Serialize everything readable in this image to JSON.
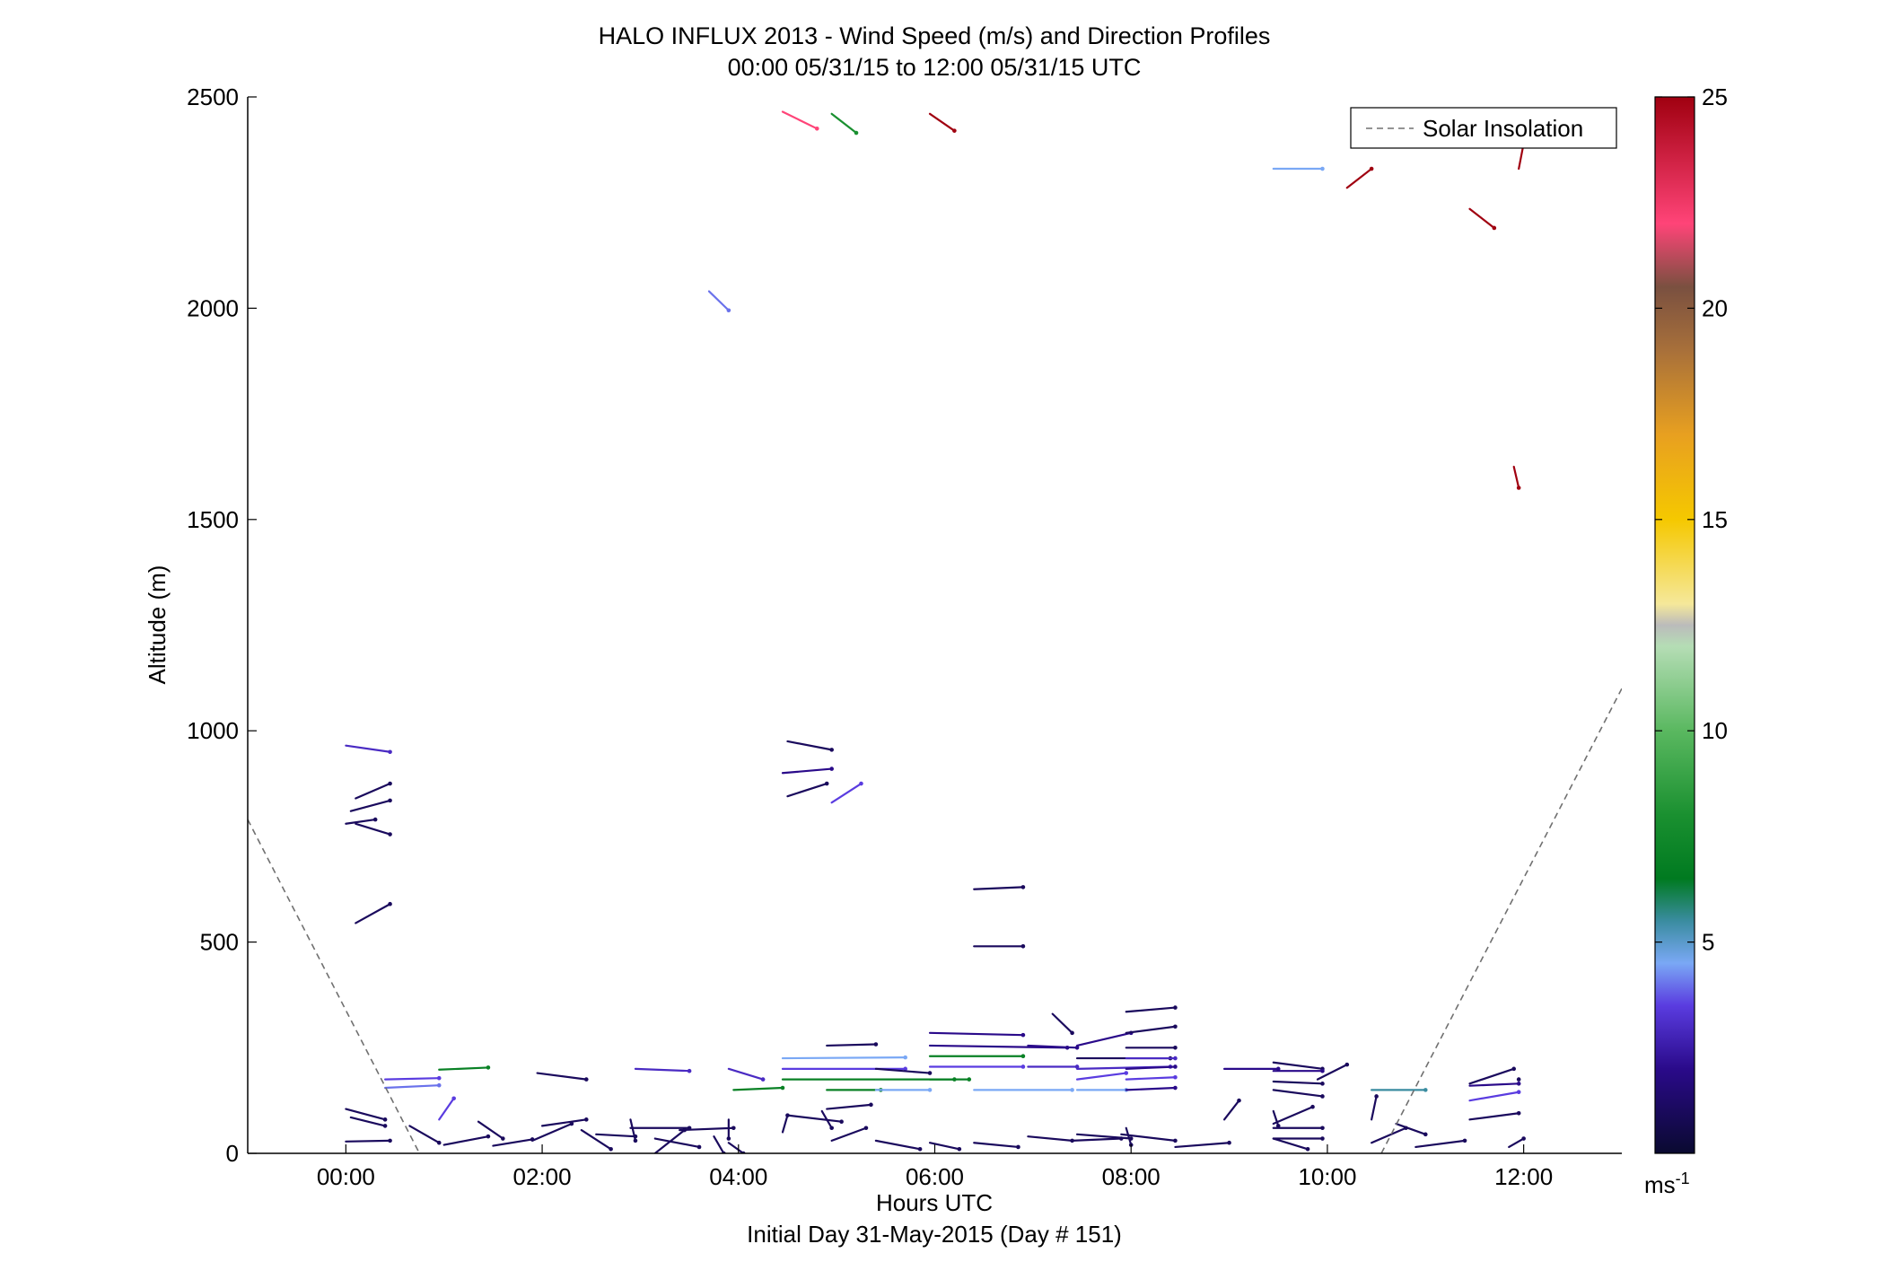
{
  "chart_data": {
    "type": "scatter",
    "title": "HALO INFLUX 2013 - Wind Speed (m/s) and Direction Profiles",
    "subtitle": "00:00 05/31/15 to 12:00 05/31/15  UTC",
    "xlabel": "Hours UTC",
    "xlabel2": "Initial Day 31-May-2015 (Day # 151)",
    "ylabel": "Altitude (m)",
    "xlim": [
      -1,
      13
    ],
    "ylim": [
      0,
      2500
    ],
    "x_ticks": [
      0,
      2,
      4,
      6,
      8,
      10,
      12
    ],
    "x_tick_labels": [
      "00:00",
      "02:00",
      "04:00",
      "06:00",
      "08:00",
      "10:00",
      "12:00"
    ],
    "y_ticks": [
      0,
      500,
      1000,
      1500,
      2000,
      2500
    ],
    "y_tick_labels": [
      "0",
      "500",
      "1000",
      "1500",
      "2000",
      "2500"
    ],
    "legend": {
      "entries": [
        "Solar Insolation"
      ],
      "position": "top-right"
    },
    "colorbar": {
      "min": 0,
      "max": 25,
      "ticks": [
        5,
        10,
        15,
        20,
        25
      ],
      "tick_labels": [
        "5",
        "10",
        "15",
        "20",
        "25"
      ],
      "unit_label": "ms",
      "unit_exponent": "-1",
      "stops": [
        {
          "v": 0,
          "c": "#0a0a30"
        },
        {
          "v": 2,
          "c": "#2a0a8a"
        },
        {
          "v": 3.5,
          "c": "#5a3ce0"
        },
        {
          "v": 4.5,
          "c": "#7aa8f5"
        },
        {
          "v": 5.5,
          "c": "#3a8ca0"
        },
        {
          "v": 6.5,
          "c": "#007a20"
        },
        {
          "v": 8,
          "c": "#1a9030"
        },
        {
          "v": 10,
          "c": "#5ab860"
        },
        {
          "v": 12,
          "c": "#b5ddb5"
        },
        {
          "v": 12.5,
          "c": "#bbbbbb"
        },
        {
          "v": 13,
          "c": "#f5e89a"
        },
        {
          "v": 15,
          "c": "#f5c800"
        },
        {
          "v": 17,
          "c": "#e8a020"
        },
        {
          "v": 19,
          "c": "#a8703a"
        },
        {
          "v": 20.5,
          "c": "#7a5040"
        },
        {
          "v": 22,
          "c": "#ff4478"
        },
        {
          "v": 25,
          "c": "#a00010"
        }
      ]
    },
    "solar_insolation": {
      "color": "#707070",
      "segments": [
        [
          [
            -1,
            790
          ],
          [
            0.75,
            0
          ]
        ],
        [
          [
            10.55,
            0
          ],
          [
            13,
            1100
          ]
        ]
      ]
    },
    "wind_barbs": [
      {
        "x": 0,
        "y": 965,
        "dx": 0.45,
        "dy": -15,
        "speed": 3
      },
      {
        "x": 0.1,
        "y": 840,
        "dx": 0.35,
        "dy": 35,
        "speed": 1
      },
      {
        "x": 0.05,
        "y": 810,
        "dx": 0.4,
        "dy": 25,
        "speed": 1
      },
      {
        "x": 0.1,
        "y": 780,
        "dx": 0.35,
        "dy": -25,
        "speed": 1
      },
      {
        "x": 0,
        "y": 780,
        "dx": 0.3,
        "dy": 10,
        "speed": 1
      },
      {
        "x": 0.1,
        "y": 545,
        "dx": 0.35,
        "dy": 45,
        "speed": 1
      },
      {
        "x": 0.4,
        "y": 175,
        "dx": 0.55,
        "dy": 3,
        "speed": 3.5
      },
      {
        "x": 0.4,
        "y": 155,
        "dx": 0.55,
        "dy": 6,
        "speed": 4
      },
      {
        "x": 0.95,
        "y": 198,
        "dx": 0.5,
        "dy": 5,
        "speed": 7
      },
      {
        "x": 0,
        "y": 105,
        "dx": 0.4,
        "dy": -25,
        "speed": 1
      },
      {
        "x": 0.05,
        "y": 85,
        "dx": 0.35,
        "dy": -20,
        "speed": 1
      },
      {
        "x": 0,
        "y": 28,
        "dx": 0.45,
        "dy": 2,
        "speed": 1
      },
      {
        "x": 0.65,
        "y": 65,
        "dx": 0.3,
        "dy": -40,
        "speed": 1
      },
      {
        "x": 0.95,
        "y": 80,
        "dx": 0.15,
        "dy": 50,
        "speed": 3.5
      },
      {
        "x": 1,
        "y": 20,
        "dx": 0.45,
        "dy": 20,
        "speed": 1
      },
      {
        "x": 1.35,
        "y": 75,
        "dx": 0.25,
        "dy": -40,
        "speed": 1
      },
      {
        "x": 1.5,
        "y": 18,
        "dx": 0.4,
        "dy": 15,
        "speed": 1
      },
      {
        "x": 1.95,
        "y": 190,
        "dx": 0.5,
        "dy": -15,
        "speed": 1
      },
      {
        "x": 1.9,
        "y": 30,
        "dx": 0.4,
        "dy": 40,
        "speed": 1
      },
      {
        "x": 2,
        "y": 65,
        "dx": 0.45,
        "dy": 15,
        "speed": 1
      },
      {
        "x": 2.4,
        "y": 55,
        "dx": 0.3,
        "dy": -45,
        "speed": 1
      },
      {
        "x": 2.55,
        "y": 45,
        "dx": 0.4,
        "dy": -5,
        "speed": 1
      },
      {
        "x": 2.9,
        "y": 80,
        "dx": 0.05,
        "dy": -50,
        "speed": 1
      },
      {
        "x": 2.9,
        "y": 60,
        "dx": 0.6,
        "dy": 0,
        "speed": 1
      },
      {
        "x": 2.95,
        "y": 200,
        "dx": 0.55,
        "dy": -5,
        "speed": 3
      },
      {
        "x": 3.15,
        "y": 35,
        "dx": 0.45,
        "dy": -20,
        "speed": 1
      },
      {
        "x": 3.15,
        "y": 0,
        "dx": 0.3,
        "dy": 55,
        "speed": 1
      },
      {
        "x": 3.9,
        "y": 200,
        "dx": 0.35,
        "dy": -25,
        "speed": 3
      },
      {
        "x": 3.9,
        "y": 80,
        "dx": 0,
        "dy": -45,
        "speed": 1
      },
      {
        "x": 3.4,
        "y": 55,
        "dx": 0.55,
        "dy": 5,
        "speed": 1
      },
      {
        "x": 3.75,
        "y": 40,
        "dx": 0.1,
        "dy": -40,
        "speed": 1
      },
      {
        "x": 3.9,
        "y": 25,
        "dx": 0.15,
        "dy": -25,
        "speed": 1
      },
      {
        "x": 4.45,
        "y": 2465,
        "dx": 0.35,
        "dy": -40,
        "speed": 22
      },
      {
        "x": 4.95,
        "y": 2460,
        "dx": 0.25,
        "dy": -45,
        "speed": 8
      },
      {
        "x": 5.95,
        "y": 2460,
        "dx": 0.25,
        "dy": -40,
        "speed": 25
      },
      {
        "x": 3.7,
        "y": 2040,
        "dx": 0.2,
        "dy": -45,
        "speed": 4
      },
      {
        "x": 4.5,
        "y": 975,
        "dx": 0.45,
        "dy": -20,
        "speed": 1
      },
      {
        "x": 4.45,
        "y": 900,
        "dx": 0.5,
        "dy": 10,
        "speed": 2
      },
      {
        "x": 4.5,
        "y": 845,
        "dx": 0.4,
        "dy": 30,
        "speed": 1
      },
      {
        "x": 4.95,
        "y": 830,
        "dx": 0.3,
        "dy": 45,
        "speed": 3.5
      },
      {
        "x": 4.45,
        "y": 225,
        "dx": 1.25,
        "dy": 2,
        "speed": 4.5
      },
      {
        "x": 4.45,
        "y": 200,
        "dx": 1.25,
        "dy": 0,
        "speed": 3.5
      },
      {
        "x": 4.45,
        "y": 175,
        "dx": 1.75,
        "dy": 0,
        "speed": 7
      },
      {
        "x": 4.9,
        "y": 150,
        "dx": 0.55,
        "dy": 0,
        "speed": 7
      },
      {
        "x": 4.9,
        "y": 255,
        "dx": 0.5,
        "dy": 3,
        "speed": 1
      },
      {
        "x": 4.9,
        "y": 105,
        "dx": 0.45,
        "dy": 10,
        "speed": 1
      },
      {
        "x": 4.5,
        "y": 90,
        "dx": 0.55,
        "dy": -15,
        "speed": 1
      },
      {
        "x": 4.45,
        "y": 50,
        "dx": 0.05,
        "dy": 40,
        "speed": 1
      },
      {
        "x": 4.95,
        "y": 30,
        "dx": 0.35,
        "dy": 30,
        "speed": 1
      },
      {
        "x": 4.85,
        "y": 100,
        "dx": 0.1,
        "dy": -40,
        "speed": 1
      },
      {
        "x": 3.95,
        "y": 150,
        "dx": 0.5,
        "dy": 5,
        "speed": 7
      },
      {
        "x": 5.4,
        "y": 200,
        "dx": 0.55,
        "dy": -10,
        "speed": 1
      },
      {
        "x": 5.4,
        "y": 150,
        "dx": 0.55,
        "dy": 0,
        "speed": 4.5
      },
      {
        "x": 5.4,
        "y": 30,
        "dx": 0.45,
        "dy": -20,
        "speed": 1
      },
      {
        "x": 5.95,
        "y": 285,
        "dx": 0.95,
        "dy": -5,
        "speed": 2
      },
      {
        "x": 5.95,
        "y": 255,
        "dx": 1.4,
        "dy": -5,
        "speed": 2
      },
      {
        "x": 5.95,
        "y": 230,
        "dx": 0.95,
        "dy": 0,
        "speed": 7
      },
      {
        "x": 5.95,
        "y": 205,
        "dx": 0.95,
        "dy": 0,
        "speed": 3.5
      },
      {
        "x": 5.95,
        "y": 175,
        "dx": 0.4,
        "dy": 0,
        "speed": 7
      },
      {
        "x": 5.95,
        "y": 25,
        "dx": 0.3,
        "dy": -15,
        "speed": 1
      },
      {
        "x": 6.4,
        "y": 625,
        "dx": 0.5,
        "dy": 5,
        "speed": 1
      },
      {
        "x": 6.4,
        "y": 490,
        "dx": 0.5,
        "dy": 0,
        "speed": 1
      },
      {
        "x": 6.4,
        "y": 150,
        "dx": 1,
        "dy": 0,
        "speed": 4.5
      },
      {
        "x": 6.4,
        "y": 25,
        "dx": 0.45,
        "dy": -10,
        "speed": 1
      },
      {
        "x": 6.95,
        "y": 205,
        "dx": 0.5,
        "dy": 0,
        "speed": 3
      },
      {
        "x": 6.95,
        "y": 255,
        "dx": 0.5,
        "dy": -5,
        "speed": 2
      },
      {
        "x": 7.2,
        "y": 330,
        "dx": 0.2,
        "dy": -45,
        "speed": 1
      },
      {
        "x": 6.95,
        "y": 40,
        "dx": 0.45,
        "dy": -10,
        "speed": 1
      },
      {
        "x": 7.45,
        "y": 255,
        "dx": 0.55,
        "dy": 30,
        "speed": 2
      },
      {
        "x": 7.45,
        "y": 225,
        "dx": 0.95,
        "dy": 0,
        "speed": 1
      },
      {
        "x": 7.45,
        "y": 200,
        "dx": 0.95,
        "dy": 5,
        "speed": 3
      },
      {
        "x": 7.45,
        "y": 175,
        "dx": 0.5,
        "dy": 15,
        "speed": 3.5
      },
      {
        "x": 7.45,
        "y": 150,
        "dx": 0.5,
        "dy": 0,
        "speed": 4.5
      },
      {
        "x": 7.45,
        "y": 45,
        "dx": 0.55,
        "dy": -10,
        "speed": 1
      },
      {
        "x": 7.4,
        "y": 30,
        "dx": 0.5,
        "dy": 5,
        "speed": 1
      },
      {
        "x": 7.95,
        "y": 335,
        "dx": 0.5,
        "dy": 10,
        "speed": 1
      },
      {
        "x": 7.95,
        "y": 285,
        "dx": 0.5,
        "dy": 15,
        "speed": 1
      },
      {
        "x": 7.95,
        "y": 250,
        "dx": 0.5,
        "dy": 0,
        "speed": 1
      },
      {
        "x": 7.95,
        "y": 225,
        "dx": 0.5,
        "dy": 0,
        "speed": 3
      },
      {
        "x": 7.95,
        "y": 200,
        "dx": 0.5,
        "dy": 5,
        "speed": 2
      },
      {
        "x": 7.95,
        "y": 175,
        "dx": 0.5,
        "dy": 5,
        "speed": 3.5
      },
      {
        "x": 7.95,
        "y": 150,
        "dx": 0.5,
        "dy": 5,
        "speed": 2
      },
      {
        "x": 7.9,
        "y": 45,
        "dx": 0.55,
        "dy": -15,
        "speed": 1
      },
      {
        "x": 7.95,
        "y": 60,
        "dx": 0.05,
        "dy": -40,
        "speed": 1
      },
      {
        "x": 8.45,
        "y": 15,
        "dx": 0.55,
        "dy": 10,
        "speed": 1
      },
      {
        "x": 8.95,
        "y": 200,
        "dx": 0.55,
        "dy": 0,
        "speed": 2
      },
      {
        "x": 8.95,
        "y": 80,
        "dx": 0.15,
        "dy": 45,
        "speed": 1
      },
      {
        "x": 9.45,
        "y": 215,
        "dx": 0.5,
        "dy": -15,
        "speed": 1
      },
      {
        "x": 9.45,
        "y": 195,
        "dx": 0.5,
        "dy": 0,
        "speed": 2
      },
      {
        "x": 9.45,
        "y": 170,
        "dx": 0.5,
        "dy": -5,
        "speed": 1
      },
      {
        "x": 9.45,
        "y": 150,
        "dx": 0.5,
        "dy": -15,
        "speed": 1
      },
      {
        "x": 9.45,
        "y": 100,
        "dx": 0.05,
        "dy": -35,
        "speed": 1
      },
      {
        "x": 9.45,
        "y": 60,
        "dx": 0.5,
        "dy": 0,
        "speed": 1
      },
      {
        "x": 9.45,
        "y": 35,
        "dx": 0.5,
        "dy": 0,
        "speed": 1
      },
      {
        "x": 9.45,
        "y": 35,
        "dx": 0.35,
        "dy": -25,
        "speed": 1
      },
      {
        "x": 9.45,
        "y": 70,
        "dx": 0.4,
        "dy": 40,
        "speed": 1
      },
      {
        "x": 9.45,
        "y": 2330,
        "dx": 0.5,
        "dy": 0,
        "speed": 4.5
      },
      {
        "x": 9.9,
        "y": 175,
        "dx": 0.3,
        "dy": 35,
        "speed": 1
      },
      {
        "x": 10.2,
        "y": 2285,
        "dx": 0.25,
        "dy": 45,
        "speed": 25
      },
      {
        "x": 10.45,
        "y": 80,
        "dx": 0.05,
        "dy": 55,
        "speed": 1
      },
      {
        "x": 10.45,
        "y": 150,
        "dx": 0.55,
        "dy": 0,
        "speed": 5.5
      },
      {
        "x": 10.45,
        "y": 25,
        "dx": 0.35,
        "dy": 35,
        "speed": 1
      },
      {
        "x": 10.9,
        "y": 15,
        "dx": 0.5,
        "dy": 15,
        "speed": 1
      },
      {
        "x": 10.7,
        "y": 70,
        "dx": 0.3,
        "dy": -25,
        "speed": 1
      },
      {
        "x": 11.45,
        "y": 2235,
        "dx": 0.25,
        "dy": -45,
        "speed": 25
      },
      {
        "x": 11.45,
        "y": 160,
        "dx": 0.5,
        "dy": 5,
        "speed": 2
      },
      {
        "x": 11.45,
        "y": 165,
        "dx": 0.45,
        "dy": 35,
        "speed": 1
      },
      {
        "x": 11.45,
        "y": 125,
        "dx": 0.5,
        "dy": 20,
        "speed": 3.5
      },
      {
        "x": 11.45,
        "y": 80,
        "dx": 0.5,
        "dy": 15,
        "speed": 1
      },
      {
        "x": 11.95,
        "y": 2330,
        "dx": 0.05,
        "dy": 60,
        "speed": 25
      },
      {
        "x": 11.9,
        "y": 1625,
        "dx": 0.05,
        "dy": -50,
        "speed": 25
      },
      {
        "x": 11.95,
        "y": 175,
        "dx": 0,
        "dy": 0,
        "speed": 1
      },
      {
        "x": 11.85,
        "y": 15,
        "dx": 0.15,
        "dy": 20,
        "speed": 1
      }
    ]
  }
}
